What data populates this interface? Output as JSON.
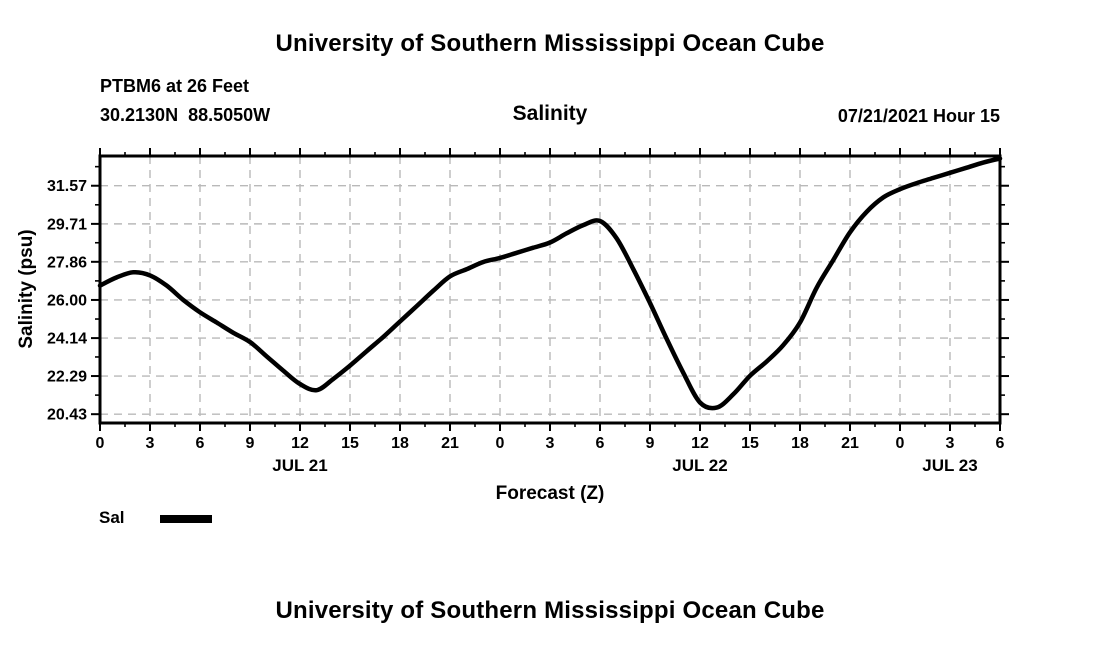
{
  "page": {
    "top_title": "University of Southern Mississippi Ocean Cube",
    "bottom_title": "University of Southern Mississippi Ocean Cube"
  },
  "header": {
    "station": "PTBM6 at 26 Feet",
    "coordinates": "30.2130N  88.5050W",
    "plot_title": "Salinity",
    "run_time": "07/21/2021 Hour 15"
  },
  "legend": {
    "label": "Sal",
    "swatch_color": "#000000"
  },
  "chart_data": {
    "type": "line",
    "title": "Salinity",
    "xlabel": "Forecast (Z)",
    "ylabel": "Salinity (psu)",
    "series_name": "Sal",
    "hours": [
      0,
      1,
      2,
      3,
      4,
      5,
      6,
      7,
      8,
      9,
      10,
      11,
      12,
      13,
      14,
      15,
      16,
      17,
      18,
      19,
      20,
      21,
      22,
      23,
      24,
      25,
      26,
      27,
      28,
      29,
      30,
      31,
      32,
      33,
      34,
      35,
      36,
      37,
      38,
      39,
      40,
      41,
      42,
      43,
      44,
      45,
      46,
      47,
      48,
      49,
      50,
      51,
      52,
      53,
      54
    ],
    "values": [
      26.7,
      27.1,
      27.35,
      27.2,
      26.7,
      26.0,
      25.4,
      24.9,
      24.4,
      23.95,
      23.25,
      22.55,
      21.9,
      21.6,
      22.15,
      22.8,
      23.5,
      24.2,
      24.95,
      25.7,
      26.45,
      27.15,
      27.5,
      27.85,
      28.05,
      28.3,
      28.55,
      28.8,
      29.25,
      29.65,
      29.85,
      29.0,
      27.5,
      25.85,
      24.1,
      22.45,
      21.0,
      20.75,
      21.4,
      22.3,
      23.0,
      23.8,
      24.9,
      26.6,
      27.95,
      29.3,
      30.3,
      31.0,
      31.4,
      31.7,
      31.95,
      32.2,
      32.45,
      32.7,
      32.9
    ],
    "xlim_hours": [
      0,
      54
    ],
    "ylim": [
      20.0,
      33.02
    ],
    "x_major_step_hours": 3,
    "x_minor_step_hours": 1.5,
    "x_tick_labels": [
      "0",
      "3",
      "6",
      "9",
      "12",
      "15",
      "18",
      "21",
      "0",
      "3",
      "6",
      "9",
      "12",
      "15",
      "18",
      "21",
      "0",
      "3",
      "6"
    ],
    "y_ticks": [
      31.57,
      29.71,
      27.86,
      26.0,
      24.14,
      22.29,
      20.43
    ],
    "y_tick_labels": [
      "31.57",
      "29.71",
      "27.86",
      "26.00",
      "24.14",
      "22.29",
      "20.43"
    ],
    "day_labels": [
      {
        "label": "JUL 21",
        "hour": 12
      },
      {
        "label": "JUL 22",
        "hour": 36
      },
      {
        "label": "JUL 23",
        "hour": 51
      }
    ],
    "grid": true,
    "grid_color": "#b9b9b9",
    "line_color": "#000000",
    "axis_color": "#000000",
    "background_color": "#ffffff"
  }
}
